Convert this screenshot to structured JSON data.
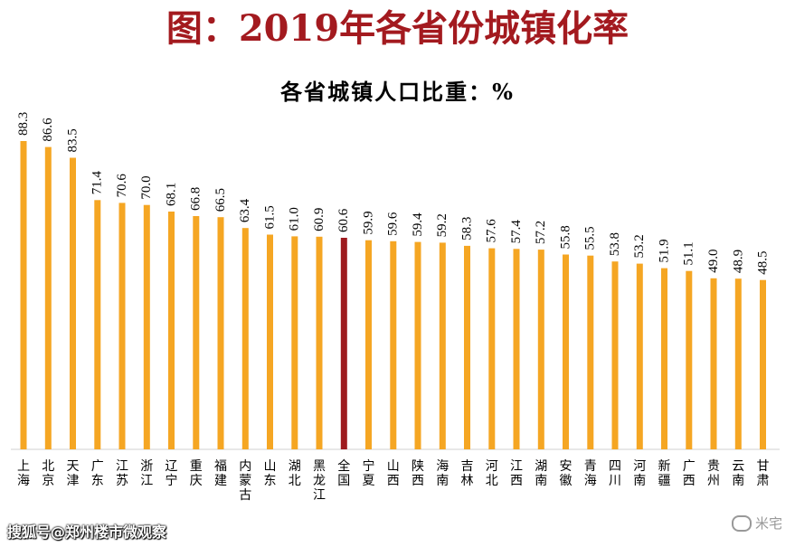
{
  "page_title": "图：2019年各省份城镇化率",
  "watermark_left": "搜狐号@郑州楼市微观察",
  "watermark_right": "米宅",
  "colors": {
    "bar": "#f5a623",
    "highlight": "#9e1b1f",
    "title": "#a31a1f"
  },
  "chart_data": {
    "type": "bar",
    "title": "各省城镇人口比重：%",
    "categories": [
      "上海",
      "北京",
      "天津",
      "广东",
      "江苏",
      "浙江",
      "辽宁",
      "重庆",
      "福建",
      "内蒙古",
      "山东",
      "湖北",
      "黑龙江",
      "全国",
      "宁夏",
      "山西",
      "陕西",
      "海南",
      "吉林",
      "河北",
      "江西",
      "湖南",
      "安徽",
      "青海",
      "四川",
      "河南",
      "新疆",
      "广西",
      "贵州",
      "云南",
      "甘肃"
    ],
    "values": [
      88.3,
      86.6,
      83.5,
      71.4,
      70.6,
      70.0,
      68.1,
      66.8,
      66.5,
      63.4,
      61.5,
      61.0,
      60.9,
      60.6,
      59.9,
      59.6,
      59.4,
      59.2,
      58.3,
      57.6,
      57.4,
      57.2,
      55.8,
      55.5,
      53.8,
      53.2,
      51.9,
      51.1,
      49.0,
      48.9,
      48.5
    ],
    "value_labels": [
      "88.3",
      "86.6",
      "83.5",
      "71.4",
      "70.6",
      "70.0",
      "68.1",
      "66.8",
      "66.5",
      "63.4",
      "61.5",
      "61.0",
      "60.9",
      "60.6",
      "59.9",
      "59.6",
      "59.4",
      "59.2",
      "58.3",
      "57.6",
      "57.4",
      "57.2",
      "55.8",
      "55.5",
      "53.8",
      "53.2",
      "51.9",
      "51.1",
      "49.0",
      "48.9",
      "48.5"
    ],
    "highlight_category": "全国",
    "ylim": [
      0,
      88.3
    ],
    "grid": false,
    "legend": "none"
  }
}
